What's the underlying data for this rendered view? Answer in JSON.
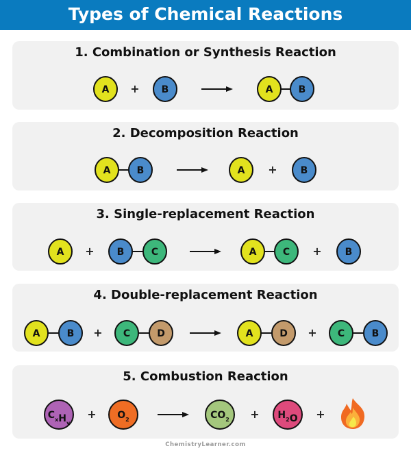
{
  "title": "Types of Chemical Reactions",
  "footer": "ChemistryLearner.com",
  "colors": {
    "header": "#0a7bbf",
    "A": "#e2e21e",
    "B": "#4a8bcb",
    "C": "#3db77b",
    "D": "#c39a6b",
    "CxHy": "#ae63b5",
    "O2": "#ef6d24",
    "CO2": "#a4c77d",
    "H2O": "#de4a7c"
  },
  "reactions": [
    {
      "title": "1. Combination or Synthesis Reaction",
      "tokens": [
        {
          "t": "mol",
          "atoms": [
            "A"
          ]
        },
        {
          "t": "plus",
          "label": "+"
        },
        {
          "t": "mol",
          "atoms": [
            "B"
          ]
        },
        {
          "t": "arrow"
        },
        {
          "t": "mol",
          "atoms": [
            "A",
            "B"
          ]
        }
      ]
    },
    {
      "title": "2. Decomposition Reaction",
      "tokens": [
        {
          "t": "mol",
          "atoms": [
            "A",
            "B"
          ]
        },
        {
          "t": "arrow"
        },
        {
          "t": "mol",
          "atoms": [
            "A"
          ]
        },
        {
          "t": "plus",
          "label": "+"
        },
        {
          "t": "mol",
          "atoms": [
            "B"
          ]
        }
      ]
    },
    {
      "title": "3. Single-replacement Reaction",
      "tokens": [
        {
          "t": "mol",
          "atoms": [
            "A"
          ]
        },
        {
          "t": "plus",
          "label": "+"
        },
        {
          "t": "mol",
          "atoms": [
            "B",
            "C"
          ]
        },
        {
          "t": "arrow"
        },
        {
          "t": "mol",
          "atoms": [
            "A",
            "C"
          ]
        },
        {
          "t": "plus",
          "label": "+"
        },
        {
          "t": "mol",
          "atoms": [
            "B"
          ]
        }
      ]
    },
    {
      "title": "4. Double-replacement Reaction",
      "tokens": [
        {
          "t": "mol",
          "atoms": [
            "A",
            "B"
          ]
        },
        {
          "t": "plus",
          "label": "+"
        },
        {
          "t": "mol",
          "atoms": [
            "C",
            "D"
          ]
        },
        {
          "t": "arrow"
        },
        {
          "t": "mol",
          "atoms": [
            "A",
            "D"
          ]
        },
        {
          "t": "plus",
          "label": "+"
        },
        {
          "t": "mol",
          "atoms": [
            "C",
            "B"
          ]
        }
      ]
    },
    {
      "title": "5. Combustion Reaction",
      "tokens": [
        {
          "t": "formula",
          "key": "CxHy",
          "parts": [
            [
              "C",
              "x"
            ],
            [
              "H",
              "y"
            ]
          ]
        },
        {
          "t": "plus",
          "label": "+"
        },
        {
          "t": "formula",
          "key": "O2",
          "parts": [
            [
              "O",
              "2"
            ]
          ]
        },
        {
          "t": "arrow"
        },
        {
          "t": "formula",
          "key": "CO2",
          "parts": [
            [
              "CO",
              "2"
            ]
          ]
        },
        {
          "t": "plus",
          "label": "+"
        },
        {
          "t": "formula",
          "key": "H2O",
          "parts": [
            [
              "H",
              "2"
            ],
            [
              "O",
              ""
            ]
          ]
        },
        {
          "t": "plus",
          "label": "+"
        },
        {
          "t": "flame",
          "icon": "fire-icon"
        }
      ]
    }
  ]
}
